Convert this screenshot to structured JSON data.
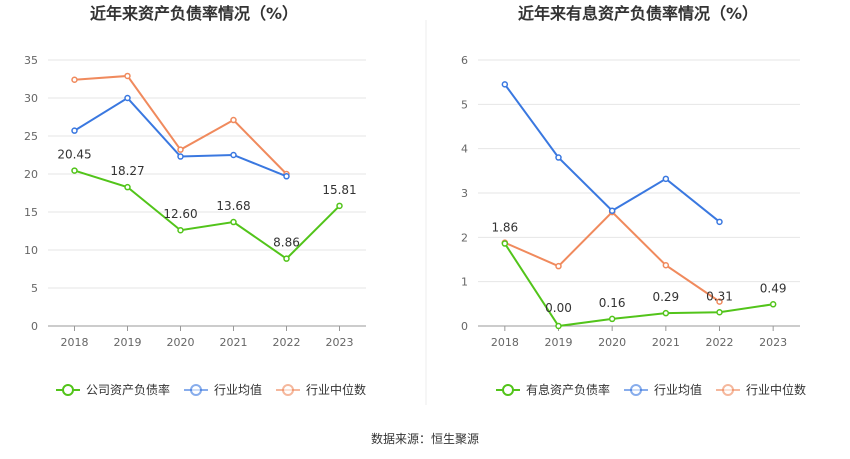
{
  "source_label": "数据来源：恒生聚源",
  "chart_data": [
    {
      "type": "line",
      "title": "近年来资产负债率情况（%）",
      "categories": [
        "2018",
        "2019",
        "2020",
        "2021",
        "2022",
        "2023"
      ],
      "ylim": [
        0,
        35
      ],
      "yticks": [
        "0",
        "5",
        "10",
        "15",
        "20",
        "25",
        "30",
        "35"
      ],
      "grid": true,
      "legend_position": "bottom",
      "series": [
        {
          "name": "公司资产负债率",
          "color": "#52c41a",
          "values": [
            20.45,
            18.27,
            12.6,
            13.68,
            8.86,
            15.81
          ],
          "labels": [
            "20.45",
            "18.27",
            "12.60",
            "13.68",
            "8.86",
            "15.81"
          ]
        },
        {
          "name": "行业均值",
          "color": "#3a78e0",
          "values": [
            25.7,
            30.0,
            22.3,
            22.5,
            19.7,
            null
          ]
        },
        {
          "name": "行业中位数",
          "color": "#f08a5d",
          "values": [
            32.4,
            32.9,
            23.2,
            27.1,
            20.0,
            null
          ]
        }
      ]
    },
    {
      "type": "line",
      "title": "近年来有息资产负债率情况（%）",
      "categories": [
        "2018",
        "2019",
        "2020",
        "2021",
        "2022",
        "2023"
      ],
      "ylim": [
        0,
        6
      ],
      "yticks": [
        "0",
        "1",
        "2",
        "3",
        "4",
        "5",
        "6"
      ],
      "grid": true,
      "legend_position": "bottom",
      "series": [
        {
          "name": "有息资产负债率",
          "color": "#52c41a",
          "values": [
            1.86,
            0.0,
            0.16,
            0.29,
            0.31,
            0.49
          ],
          "labels": [
            "1.86",
            "0.00",
            "0.16",
            "0.29",
            "0.31",
            "0.49"
          ]
        },
        {
          "name": "行业均值",
          "color": "#3a78e0",
          "values": [
            5.45,
            3.8,
            2.6,
            3.32,
            2.35,
            null
          ]
        },
        {
          "name": "行业中位数",
          "color": "#f08a5d",
          "values": [
            1.88,
            1.35,
            2.57,
            1.37,
            0.55,
            null
          ]
        }
      ]
    }
  ]
}
